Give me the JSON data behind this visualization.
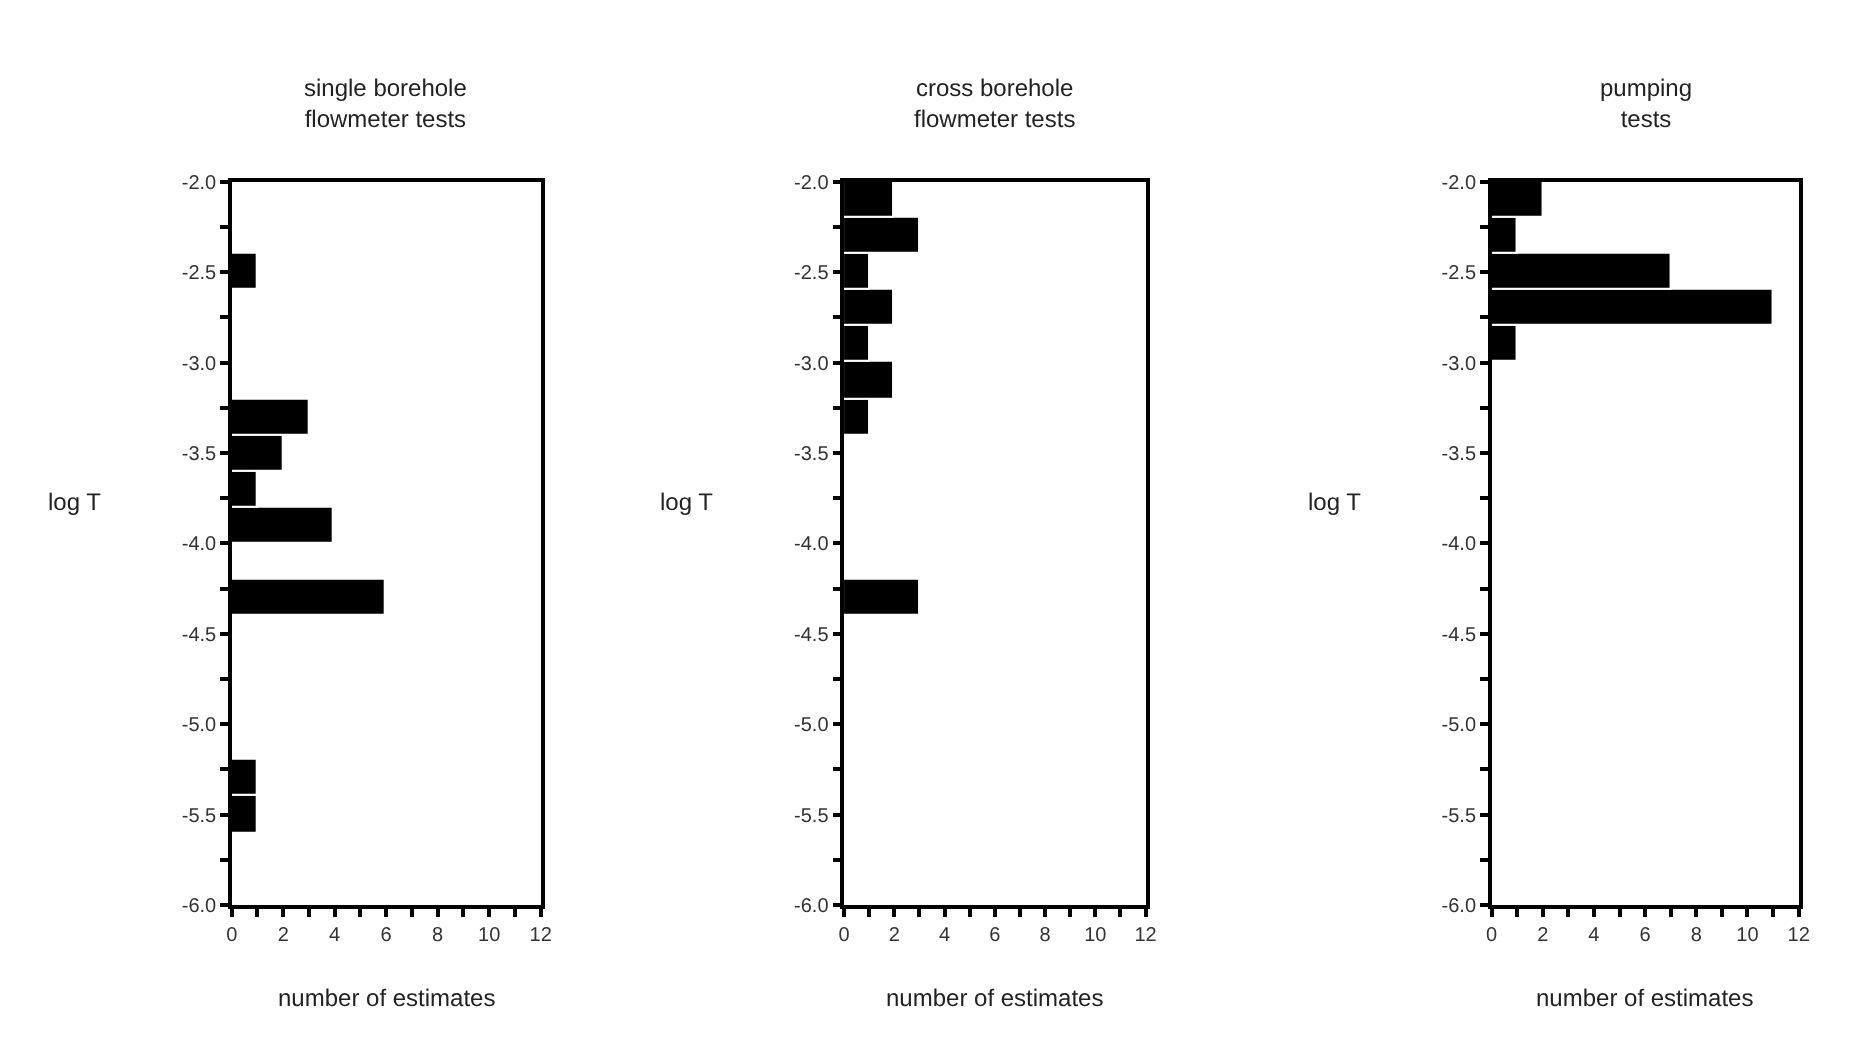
{
  "chart_data": [
    {
      "type": "histogram",
      "orientation": "horizontal",
      "title": "single borehole\nflowmeter tests",
      "xlabel": "number of estimates",
      "ylabel": "log T",
      "color": "#000000",
      "bins": [
        -6.0,
        -5.8,
        -5.6,
        -5.4,
        -5.2,
        -5.0,
        -4.8,
        -4.6,
        -4.4,
        -4.2,
        -4.0,
        -3.8,
        -3.6,
        -3.4,
        -3.2,
        -3.0,
        -2.8,
        -2.6,
        -2.4,
        -2.2,
        -2.0
      ],
      "values": [
        0,
        0,
        1,
        1,
        0,
        0,
        0,
        0,
        6,
        0,
        4,
        1,
        2,
        3,
        0,
        0,
        0,
        1,
        0,
        0
      ],
      "xlim": [
        0,
        12
      ],
      "xticks": [
        0,
        {
          "value": 1,
          "label": null
        },
        2,
        {
          "value": 3,
          "label": null
        },
        4,
        {
          "value": 5,
          "label": null
        },
        6,
        {
          "value": 7,
          "label": null
        },
        8,
        {
          "value": 9,
          "label": null
        },
        10,
        {
          "value": 11,
          "label": null
        },
        12
      ],
      "ylim": [
        -6.0,
        -2.0
      ],
      "yticks": [
        {
          "value": -6.0,
          "label": "-6.0"
        },
        {
          "value": -5.75,
          "label": null
        },
        {
          "value": -5.5,
          "label": "-5.5"
        },
        {
          "value": -5.25,
          "label": null
        },
        {
          "value": -5.0,
          "label": "-5.0"
        },
        {
          "value": -4.75,
          "label": null
        },
        {
          "value": -4.5,
          "label": "-4.5"
        },
        {
          "value": -4.25,
          "label": null
        },
        {
          "value": -4.0,
          "label": "-4.0"
        },
        {
          "value": -3.75,
          "label": null
        },
        {
          "value": -3.5,
          "label": "-3.5"
        },
        {
          "value": -3.25,
          "label": null
        },
        {
          "value": -3.0,
          "label": "-3.0"
        },
        {
          "value": -2.75,
          "label": null
        },
        {
          "value": -2.5,
          "label": "-2.5"
        },
        {
          "value": -2.25,
          "label": null
        },
        {
          "value": -2.0,
          "label": "-2.0"
        }
      ]
    },
    {
      "type": "histogram",
      "orientation": "horizontal",
      "title": "cross borehole\nflowmeter tests",
      "xlabel": "number of estimates",
      "ylabel": "log T",
      "color": "#000000",
      "bins": [
        -6.0,
        -5.8,
        -5.6,
        -5.4,
        -5.2,
        -5.0,
        -4.8,
        -4.6,
        -4.4,
        -4.2,
        -4.0,
        -3.8,
        -3.6,
        -3.4,
        -3.2,
        -3.0,
        -2.8,
        -2.6,
        -2.4,
        -2.2,
        -2.0
      ],
      "values": [
        0,
        0,
        0,
        0,
        0,
        0,
        0,
        0,
        3,
        0,
        0,
        0,
        0,
        1,
        2,
        1,
        2,
        1,
        3,
        2
      ],
      "xlim": [
        0,
        12
      ],
      "xticks": [
        0,
        {
          "value": 1,
          "label": null
        },
        2,
        {
          "value": 3,
          "label": null
        },
        4,
        {
          "value": 5,
          "label": null
        },
        6,
        {
          "value": 7,
          "label": null
        },
        8,
        {
          "value": 9,
          "label": null
        },
        10,
        {
          "value": 11,
          "label": null
        },
        12
      ],
      "ylim": [
        -6.0,
        -2.0
      ],
      "yticks": [
        {
          "value": -6.0,
          "label": "-6.0"
        },
        {
          "value": -5.75,
          "label": null
        },
        {
          "value": -5.5,
          "label": "-5.5"
        },
        {
          "value": -5.25,
          "label": null
        },
        {
          "value": -5.0,
          "label": "-5.0"
        },
        {
          "value": -4.75,
          "label": null
        },
        {
          "value": -4.5,
          "label": "-4.5"
        },
        {
          "value": -4.25,
          "label": null
        },
        {
          "value": -4.0,
          "label": "-4.0"
        },
        {
          "value": -3.75,
          "label": null
        },
        {
          "value": -3.5,
          "label": "-3.5"
        },
        {
          "value": -3.25,
          "label": null
        },
        {
          "value": -3.0,
          "label": "-3.0"
        },
        {
          "value": -2.75,
          "label": null
        },
        {
          "value": -2.5,
          "label": "-2.5"
        },
        {
          "value": -2.25,
          "label": null
        },
        {
          "value": -2.0,
          "label": "-2.0"
        }
      ]
    },
    {
      "type": "histogram",
      "orientation": "horizontal",
      "title": "pumping\ntests",
      "xlabel": "number of estimates",
      "ylabel": "log T",
      "color": "#000000",
      "bins": [
        -6.0,
        -5.8,
        -5.6,
        -5.4,
        -5.2,
        -5.0,
        -4.8,
        -4.6,
        -4.4,
        -4.2,
        -4.0,
        -3.8,
        -3.6,
        -3.4,
        -3.2,
        -3.0,
        -2.8,
        -2.6,
        -2.4,
        -2.2,
        -2.0
      ],
      "values": [
        0,
        0,
        0,
        0,
        0,
        0,
        0,
        0,
        0,
        0,
        0,
        0,
        0,
        0,
        0,
        1,
        11,
        7,
        1,
        2
      ],
      "xlim": [
        0,
        12
      ],
      "xticks": [
        0,
        {
          "value": 1,
          "label": null
        },
        2,
        {
          "value": 3,
          "label": null
        },
        4,
        {
          "value": 5,
          "label": null
        },
        6,
        {
          "value": 7,
          "label": null
        },
        8,
        {
          "value": 9,
          "label": null
        },
        10,
        {
          "value": 11,
          "label": null
        },
        12
      ],
      "ylim": [
        -6.0,
        -2.0
      ],
      "yticks": [
        {
          "value": -6.0,
          "label": "-6.0"
        },
        {
          "value": -5.75,
          "label": null
        },
        {
          "value": -5.5,
          "label": "-5.5"
        },
        {
          "value": -5.25,
          "label": null
        },
        {
          "value": -5.0,
          "label": "-5.0"
        },
        {
          "value": -4.75,
          "label": null
        },
        {
          "value": -4.5,
          "label": "-4.5"
        },
        {
          "value": -4.25,
          "label": null
        },
        {
          "value": -4.0,
          "label": "-4.0"
        },
        {
          "value": -3.75,
          "label": null
        },
        {
          "value": -3.5,
          "label": "-3.5"
        },
        {
          "value": -3.25,
          "label": null
        },
        {
          "value": -3.0,
          "label": "-3.0"
        },
        {
          "value": -2.75,
          "label": null
        },
        {
          "value": -2.5,
          "label": "-2.5"
        },
        {
          "value": -2.25,
          "label": null
        },
        {
          "value": -2.0,
          "label": "-2.0"
        }
      ]
    }
  ]
}
